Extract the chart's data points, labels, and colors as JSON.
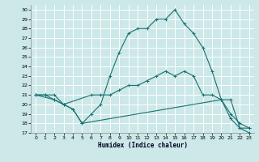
{
  "xlabel": "Humidex (Indice chaleur)",
  "bg_color": "#cce8e8",
  "grid_color": "#ffffff",
  "line_color": "#1a7070",
  "xlim": [
    -0.5,
    23.5
  ],
  "ylim": [
    17,
    30.5
  ],
  "yticks": [
    17,
    18,
    19,
    20,
    21,
    22,
    23,
    24,
    25,
    26,
    27,
    28,
    29,
    30
  ],
  "xticks": [
    0,
    1,
    2,
    3,
    4,
    5,
    6,
    7,
    8,
    9,
    10,
    11,
    12,
    13,
    14,
    15,
    16,
    17,
    18,
    19,
    20,
    21,
    22,
    23
  ],
  "line1_x": [
    0,
    1,
    2,
    3,
    4,
    5,
    6,
    7,
    8,
    9,
    10,
    11,
    12,
    13,
    14,
    15,
    16,
    17,
    18,
    19,
    20,
    21,
    22,
    23
  ],
  "line1_y": [
    21,
    21,
    21,
    20,
    19.5,
    18,
    19,
    20,
    23,
    25.5,
    27.5,
    28,
    28,
    29,
    29,
    30,
    28.5,
    27.5,
    26,
    23.5,
    20.5,
    19,
    18,
    17.5
  ],
  "line2_x": [
    0,
    2,
    3,
    6,
    7,
    8,
    9,
    10,
    11,
    12,
    13,
    14,
    15,
    16,
    17,
    18,
    19,
    20,
    21,
    22,
    23
  ],
  "line2_y": [
    21,
    20.5,
    20,
    21,
    21,
    21,
    21.5,
    22,
    22,
    22.5,
    23,
    23.5,
    23,
    23.5,
    23,
    21,
    21,
    20.5,
    20.5,
    17.5,
    17
  ],
  "line3_x": [
    0,
    1,
    2,
    3,
    4,
    5,
    20,
    21,
    22,
    23
  ],
  "line3_y": [
    21,
    21,
    20.5,
    20,
    19.5,
    18,
    20.5,
    18.5,
    17.5,
    17.5
  ]
}
